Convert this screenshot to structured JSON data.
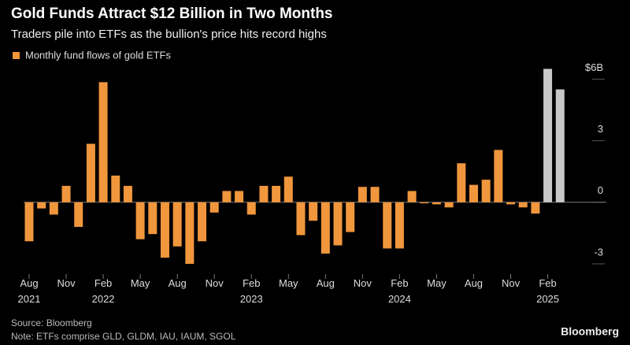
{
  "chart_data": {
    "type": "bar",
    "title": "Gold Funds Attract $12 Billion in Two Months",
    "subtitle": "Traders pile into ETFs as the bullion's price hits record highs",
    "legend": "Monthly fund flows of gold ETFs",
    "color": "#f0963c",
    "colors": [
      "#f0963c",
      "#f0963c",
      "#f0963c",
      "#f0963c",
      "#f0963c",
      "#f0963c",
      "#f0963c",
      "#f0963c",
      "#f0963c",
      "#f0963c",
      "#f0963c",
      "#f0963c",
      "#f0963c",
      "#f0963c",
      "#f0963c",
      "#f0963c",
      "#f0963c",
      "#f0963c",
      "#f0963c",
      "#f0963c",
      "#f0963c",
      "#f0963c",
      "#f0963c",
      "#f0963c",
      "#f0963c",
      "#f0963c",
      "#f0963c",
      "#f0963c",
      "#f0963c",
      "#f0963c",
      "#f0963c",
      "#f0963c",
      "#f0963c",
      "#f0963c",
      "#f0963c",
      "#f0963c",
      "#f0963c",
      "#f0963c",
      "#f0963c",
      "#f0963c",
      "#f0963c",
      "#f0963c",
      "#c8c8c8",
      "#c8c8c8"
    ],
    "categories": [
      "Aug\n2021",
      null,
      null,
      "Nov",
      null,
      null,
      "Feb\n2022",
      null,
      null,
      "May",
      null,
      null,
      "Aug",
      null,
      null,
      "Nov",
      null,
      null,
      "Feb\n2023",
      null,
      null,
      "May",
      null,
      null,
      "Aug",
      null,
      null,
      "Nov",
      null,
      null,
      "Feb\n2024",
      null,
      null,
      "May",
      null,
      null,
      "Aug",
      null,
      null,
      "Nov",
      null,
      null,
      "Feb\n2025",
      null
    ],
    "values": [
      -1.9,
      -0.3,
      -0.6,
      0.8,
      -1.2,
      2.85,
      5.85,
      1.3,
      0.8,
      -1.8,
      -1.55,
      -2.7,
      -2.15,
      -3.0,
      -1.9,
      -0.5,
      0.55,
      0.55,
      -0.6,
      0.8,
      0.8,
      1.25,
      -1.6,
      -0.9,
      -2.5,
      -2.1,
      -1.45,
      0.75,
      0.75,
      -2.25,
      -2.25,
      0.55,
      -0.05,
      -0.1,
      -0.25,
      1.9,
      0.85,
      1.1,
      2.55,
      -0.1,
      -0.25,
      -0.55,
      6.5,
      5.5
    ],
    "ylim": [
      -3.5,
      6.9
    ],
    "yticks": [
      {
        "value": 6,
        "label": "$6B"
      },
      3,
      0,
      -3
    ],
    "source": "Source: Bloomberg",
    "note": "Note: ETFs comprise GLD, GLDM, IAU, IAUM, SGOL",
    "brand": "Bloomberg"
  }
}
